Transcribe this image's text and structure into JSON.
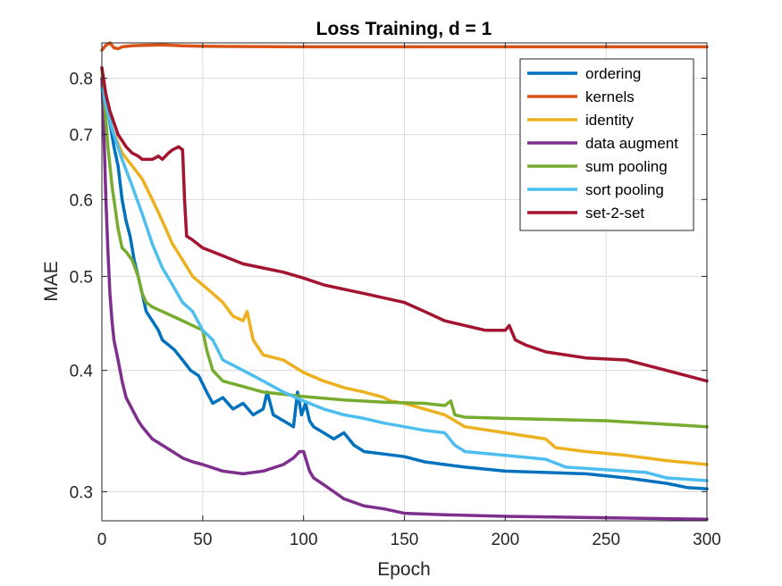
{
  "chart_data": {
    "type": "line",
    "title": "Loss Training, d = 1",
    "xlabel": "Epoch",
    "ylabel": "MAE",
    "xlim": [
      0,
      300
    ],
    "ylim": [
      0.28,
      0.87
    ],
    "yscale": "log",
    "xticks": [
      0,
      50,
      100,
      150,
      200,
      250,
      300
    ],
    "xtick_labels": [
      "0",
      "50",
      "100",
      "150",
      "200",
      "250",
      "300"
    ],
    "yticks": [
      0.3,
      0.4,
      0.5,
      0.6,
      0.7,
      0.8
    ],
    "ytick_labels": [
      "0.3",
      "0.4",
      "0.5",
      "0.6",
      "0.7",
      "0.8"
    ],
    "grid": true,
    "legend_position": "top-right",
    "series": [
      {
        "name": "ordering",
        "color": "#0072BD",
        "x": [
          0,
          3,
          6,
          8,
          10,
          12,
          14,
          16,
          18,
          20,
          22,
          25,
          28,
          30,
          33,
          36,
          40,
          44,
          48,
          52,
          55,
          60,
          65,
          70,
          75,
          80,
          82,
          85,
          90,
          95,
          97,
          99,
          101,
          103,
          105,
          110,
          115,
          120,
          125,
          130,
          140,
          150,
          160,
          170,
          180,
          200,
          220,
          240,
          260,
          270,
          280,
          290,
          300
        ],
        "y": [
          0.8,
          0.74,
          0.68,
          0.65,
          0.6,
          0.57,
          0.55,
          0.52,
          0.5,
          0.48,
          0.46,
          0.45,
          0.44,
          0.43,
          0.425,
          0.42,
          0.41,
          0.4,
          0.395,
          0.38,
          0.37,
          0.375,
          0.365,
          0.37,
          0.36,
          0.365,
          0.38,
          0.36,
          0.355,
          0.35,
          0.38,
          0.36,
          0.37,
          0.355,
          0.35,
          0.345,
          0.34,
          0.345,
          0.335,
          0.33,
          0.328,
          0.326,
          0.322,
          0.32,
          0.318,
          0.315,
          0.314,
          0.313,
          0.31,
          0.308,
          0.306,
          0.303,
          0.302
        ]
      },
      {
        "name": "kernels",
        "color": "#D95319",
        "x": [
          0,
          2,
          4,
          6,
          8,
          10,
          15,
          20,
          30,
          40,
          50,
          100,
          150,
          200,
          250,
          300
        ],
        "y": [
          0.855,
          0.865,
          0.87,
          0.86,
          0.858,
          0.862,
          0.864,
          0.865,
          0.866,
          0.864,
          0.863,
          0.862,
          0.862,
          0.862,
          0.862,
          0.862
        ]
      },
      {
        "name": "identity",
        "color": "#EDB120",
        "x": [
          0,
          5,
          10,
          15,
          20,
          25,
          30,
          35,
          40,
          45,
          50,
          55,
          60,
          65,
          70,
          72,
          75,
          80,
          90,
          100,
          110,
          120,
          130,
          140,
          143,
          150,
          160,
          170,
          175,
          180,
          200,
          220,
          225,
          240,
          260,
          280,
          300
        ],
        "y": [
          0.8,
          0.71,
          0.67,
          0.65,
          0.63,
          0.6,
          0.57,
          0.54,
          0.52,
          0.5,
          0.49,
          0.48,
          0.47,
          0.455,
          0.45,
          0.46,
          0.43,
          0.415,
          0.41,
          0.398,
          0.39,
          0.384,
          0.38,
          0.375,
          0.372,
          0.37,
          0.365,
          0.36,
          0.355,
          0.35,
          0.345,
          0.34,
          0.333,
          0.33,
          0.327,
          0.323,
          0.32
        ]
      },
      {
        "name": "data augment",
        "color": "#7E2F8E",
        "x": [
          0,
          1,
          2,
          3,
          4,
          5,
          6,
          8,
          10,
          12,
          15,
          18,
          20,
          25,
          30,
          35,
          40,
          45,
          50,
          60,
          70,
          80,
          90,
          95,
          98,
          100,
          103,
          105,
          110,
          115,
          120,
          130,
          140,
          150,
          170,
          200,
          250,
          300
        ],
        "y": [
          0.8,
          0.7,
          0.6,
          0.53,
          0.48,
          0.45,
          0.43,
          0.41,
          0.39,
          0.375,
          0.365,
          0.355,
          0.35,
          0.34,
          0.335,
          0.33,
          0.325,
          0.322,
          0.32,
          0.315,
          0.313,
          0.315,
          0.32,
          0.325,
          0.33,
          0.33,
          0.315,
          0.31,
          0.305,
          0.3,
          0.295,
          0.29,
          0.288,
          0.285,
          0.284,
          0.283,
          0.282,
          0.281
        ]
      },
      {
        "name": "sum pooling",
        "color": "#77AC30",
        "x": [
          0,
          3,
          5,
          8,
          10,
          12,
          15,
          18,
          20,
          22,
          25,
          30,
          35,
          40,
          45,
          50,
          52,
          55,
          60,
          70,
          80,
          90,
          100,
          120,
          140,
          160,
          170,
          173,
          175,
          180,
          200,
          250,
          300
        ],
        "y": [
          0.82,
          0.68,
          0.62,
          0.56,
          0.535,
          0.53,
          0.52,
          0.5,
          0.48,
          0.47,
          0.465,
          0.46,
          0.455,
          0.45,
          0.445,
          0.44,
          0.42,
          0.4,
          0.39,
          0.385,
          0.38,
          0.378,
          0.376,
          0.373,
          0.371,
          0.37,
          0.368,
          0.372,
          0.36,
          0.358,
          0.357,
          0.355,
          0.35
        ]
      },
      {
        "name": "sort pooling",
        "color": "#4DBEEE",
        "x": [
          0,
          5,
          10,
          15,
          20,
          25,
          30,
          35,
          40,
          45,
          50,
          55,
          60,
          65,
          70,
          75,
          80,
          90,
          100,
          110,
          120,
          130,
          140,
          150,
          160,
          170,
          175,
          180,
          200,
          220,
          230,
          250,
          270,
          280,
          290,
          300
        ],
        "y": [
          0.78,
          0.71,
          0.66,
          0.62,
          0.58,
          0.54,
          0.51,
          0.49,
          0.47,
          0.46,
          0.44,
          0.43,
          0.41,
          0.405,
          0.4,
          0.395,
          0.39,
          0.38,
          0.372,
          0.365,
          0.36,
          0.357,
          0.353,
          0.35,
          0.347,
          0.345,
          0.335,
          0.33,
          0.327,
          0.324,
          0.318,
          0.316,
          0.314,
          0.31,
          0.309,
          0.308
        ]
      },
      {
        "name": "set-2-set",
        "color": "#A2142F",
        "x": [
          0,
          2,
          4,
          6,
          8,
          10,
          12,
          15,
          18,
          20,
          25,
          28,
          30,
          33,
          35,
          38,
          40,
          41,
          42,
          45,
          50,
          55,
          60,
          70,
          80,
          90,
          100,
          110,
          120,
          130,
          140,
          150,
          160,
          170,
          180,
          190,
          200,
          202,
          205,
          210,
          220,
          240,
          260,
          270,
          280,
          290,
          300
        ],
        "y": [
          0.82,
          0.77,
          0.74,
          0.72,
          0.7,
          0.69,
          0.68,
          0.67,
          0.665,
          0.66,
          0.66,
          0.665,
          0.66,
          0.67,
          0.675,
          0.68,
          0.675,
          0.6,
          0.55,
          0.545,
          0.535,
          0.53,
          0.525,
          0.515,
          0.51,
          0.505,
          0.498,
          0.49,
          0.485,
          0.48,
          0.475,
          0.47,
          0.46,
          0.45,
          0.445,
          0.44,
          0.44,
          0.445,
          0.43,
          0.425,
          0.418,
          0.412,
          0.41,
          0.405,
          0.4,
          0.395,
          0.39
        ]
      }
    ]
  }
}
